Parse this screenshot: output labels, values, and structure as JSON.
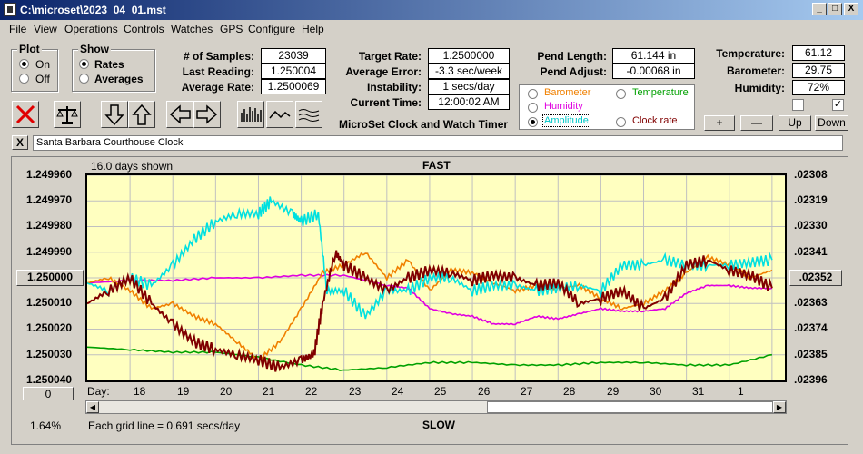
{
  "window": {
    "title": "C:\\microset\\2023_04_01.mst",
    "min": "_",
    "max": "□",
    "close": "X"
  },
  "menu": [
    "File",
    "View",
    "Operations",
    "Controls",
    "Watches",
    "GPS",
    "Configure",
    "Help"
  ],
  "plot_group": {
    "label": "Plot",
    "on": "On",
    "off": "Off"
  },
  "show_group": {
    "label": "Show",
    "rates": "Rates",
    "averages": "Averages"
  },
  "stats": {
    "samples_label": "# of Samples:",
    "samples": "23039",
    "last_label": "Last Reading:",
    "last": "1.250004",
    "avg_label": "Average Rate:",
    "avg": "1.2500069"
  },
  "target": {
    "rate_label": "Target Rate:",
    "rate": "1.2500000",
    "error_label": "Average Error:",
    "error": "-3.3 sec/week",
    "instab_label": "Instability:",
    "instab": "1 secs/day",
    "time_label": "Current Time:",
    "time": "12:00:02 AM",
    "app_name": "MicroSet Clock and Watch Timer"
  },
  "pend": {
    "length_label": "Pend Length:",
    "length": "61.144 in",
    "adjust_label": "Pend Adjust:",
    "adjust": "-0.00068 in"
  },
  "env": {
    "temp_label": "Temperature:",
    "temp": "61.12",
    "baro_label": "Barometer:",
    "baro": "29.75",
    "hum_label": "Humidity:",
    "hum": "72%"
  },
  "channels": {
    "barometer": "Barometer",
    "temperature": "Temperature",
    "humidity": "Humidity",
    "amplitude": "Amplitude",
    "clock_rate": "Clock rate"
  },
  "scale_buttons": {
    "plus": "+",
    "minus": "—",
    "up": "Up",
    "down": "Down"
  },
  "description": {
    "close": "X",
    "text": "Santa Barbara Courthouse Clock"
  },
  "chart_header": {
    "days_shown": "16.0 days shown",
    "fast": "FAST",
    "slow": "SLOW"
  },
  "footer": {
    "percent": "1.64%",
    "grid_note": "Each grid line = 0.691 secs/day",
    "day_label": "Day:",
    "zero_button": "0"
  },
  "colors": {
    "rate": "#800000",
    "amplitude": "#00e0e0",
    "humidity": "#e000e0",
    "barometer": "#f08000",
    "temperature": "#00a000",
    "plot_bg": "#ffffc0"
  },
  "chart_data": {
    "type": "line",
    "title": "",
    "xlabel": "Day:",
    "ylabel": "",
    "x_ticks": [
      "18",
      "19",
      "20",
      "21",
      "22",
      "23",
      "24",
      "25",
      "26",
      "27",
      "28",
      "29",
      "30",
      "31",
      "1"
    ],
    "y_left_ticks": [
      "1.249960",
      "1.249970",
      "1.249980",
      "1.249990",
      "1.250000",
      "1.250010",
      "1.250020",
      "1.250030",
      "1.250040"
    ],
    "y_right_ticks": [
      ".02308",
      ".02319",
      ".02330",
      ".02341",
      ".02352",
      ".02363",
      ".02374",
      ".02385",
      ".02396"
    ],
    "center_left": "1.250000",
    "center_right": ".02352",
    "ylim": [
      1.25004,
      1.24996
    ],
    "xlim": [
      17,
      33.3
    ],
    "series": [
      {
        "name": "Clock rate",
        "color": "#800000",
        "x": [
          17,
          17.5,
          18,
          18.5,
          19,
          19.5,
          20,
          20.5,
          21,
          21.5,
          22,
          22.3,
          22.5,
          22.8,
          23,
          23.5,
          24,
          24.5,
          25,
          25.5,
          26,
          26.5,
          27,
          27.5,
          28,
          28.5,
          29,
          29.5,
          30,
          30.5,
          31,
          31.5,
          32,
          32.5,
          33
        ],
        "y": [
          1.25001,
          1.250005,
          1.25,
          1.25001,
          1.250018,
          1.250025,
          1.250028,
          1.25003,
          1.250032,
          1.250035,
          1.250032,
          1.25003,
          1.25001,
          1.24999,
          1.249995,
          1.25,
          1.250005,
          1.25,
          1.249997,
          1.249998,
          1.250001,
          1.249999,
          1.25,
          1.250003,
          1.250002,
          1.25001,
          1.250008,
          1.250005,
          1.250012,
          1.250008,
          1.249995,
          1.249993,
          1.249997,
          1.249999,
          1.250004
        ]
      },
      {
        "name": "Amplitude",
        "color": "#00e0e0",
        "x": [
          17,
          17.5,
          18,
          18.5,
          19,
          19.5,
          20,
          20.5,
          21,
          21.3,
          21.8,
          22,
          22.4,
          22.6,
          23,
          23.5,
          24,
          24.5,
          25,
          25.5,
          26,
          26.5,
          27,
          27.5,
          28,
          28.5,
          29,
          29.5,
          30,
          30.5,
          31,
          31.5,
          32,
          32.5,
          33
        ],
        "y": [
          1.250002,
          1.250005,
          1.25,
          1.250003,
          1.249995,
          1.249985,
          1.249978,
          1.249975,
          1.249975,
          1.24997,
          1.249975,
          1.249978,
          1.249975,
          1.250005,
          1.250005,
          1.250015,
          1.250005,
          1.250005,
          1.25,
          1.25,
          1.250005,
          1.250003,
          1.250003,
          1.250005,
          1.250004,
          1.250003,
          1.250005,
          1.249995,
          1.249995,
          1.249993,
          1.249995,
          1.249995,
          1.249995,
          1.249994,
          1.249993
        ]
      },
      {
        "name": "Humidity",
        "color": "#e000e0",
        "x": [
          17,
          18,
          19,
          20,
          21,
          22,
          23,
          24,
          24.5,
          25,
          25.5,
          26,
          26.5,
          27,
          27.5,
          28,
          28.5,
          29,
          29.5,
          30,
          30.5,
          31,
          31.5,
          32,
          32.5,
          33
        ],
        "y": [
          1.250002,
          1.250001,
          1.250001,
          1.25,
          1.25,
          1.249999,
          1.249999,
          1.250003,
          1.250004,
          1.250012,
          1.250014,
          1.250015,
          1.250018,
          1.250018,
          1.250015,
          1.250016,
          1.250014,
          1.250012,
          1.250013,
          1.250013,
          1.250012,
          1.250006,
          1.250003,
          1.250003,
          1.250004,
          1.250004
        ]
      },
      {
        "name": "Barometer",
        "color": "#f08000",
        "x": [
          17,
          17.5,
          18,
          18.5,
          19,
          19.5,
          20,
          20.5,
          21,
          21.5,
          22,
          22.5,
          23,
          23.5,
          24,
          24.5,
          25,
          25.5,
          26,
          26.5,
          27,
          27.5,
          28,
          28.5,
          29,
          29.5,
          30,
          30.5,
          31,
          31.5,
          32,
          32.5,
          33
        ],
        "y": [
          1.250002,
          1.25,
          1.250005,
          1.250012,
          1.25001,
          1.250015,
          1.250018,
          1.250025,
          1.250032,
          1.250025,
          1.250012,
          1.249998,
          1.249995,
          1.24999,
          1.25,
          1.249993,
          1.250005,
          1.249997,
          1.249998,
          1.250002,
          1.250005,
          1.250003,
          1.250004,
          1.250003,
          1.250008,
          1.250012,
          1.25001,
          1.250005,
          1.249998,
          1.249992,
          1.249995,
          1.25,
          1.249997
        ]
      },
      {
        "name": "Temperature",
        "color": "#00a000",
        "x": [
          17,
          18,
          19,
          20,
          21,
          22,
          23,
          24,
          25,
          26,
          27,
          28,
          29,
          30,
          31,
          32,
          33
        ],
        "y": [
          1.250027,
          1.250028,
          1.250029,
          1.250029,
          1.250031,
          1.250034,
          1.250036,
          1.250035,
          1.250033,
          1.250033,
          1.250034,
          1.250034,
          1.250033,
          1.250033,
          1.250034,
          1.250034,
          1.25003
        ]
      }
    ]
  }
}
